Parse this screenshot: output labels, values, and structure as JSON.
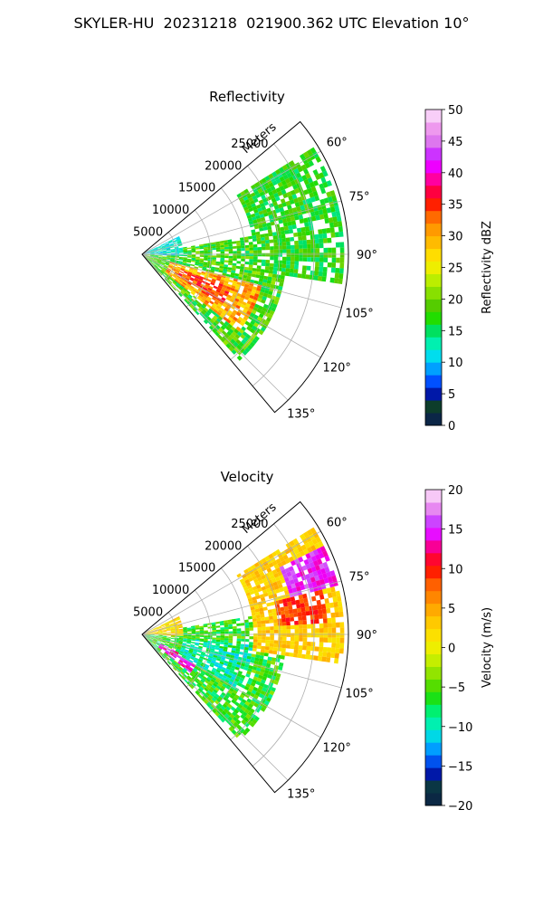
{
  "suptitle": "SKYLER-HU  20231218  021900.362 UTC Elevation 10°",
  "chart_data": [
    {
      "type": "ppi-sector",
      "title": "Reflectivity",
      "range_label": "Meters",
      "range_ticks": [
        5000,
        10000,
        15000,
        20000,
        25000
      ],
      "range_tick_labels": [
        "5000",
        "10000",
        "15000",
        "20000",
        "25000"
      ],
      "r_max": 30000,
      "azimuth_range": [
        50,
        140
      ],
      "azimuth_ticks": [
        60,
        75,
        90,
        105,
        120,
        135
      ],
      "azimuth_tick_labels": [
        "60°",
        "75°",
        "90°",
        "105°",
        "120°",
        "135°"
      ],
      "colorbar": {
        "label": "Reflectivity dBZ",
        "min": 0,
        "max": 50,
        "ticks": [
          0,
          5,
          10,
          15,
          20,
          25,
          30,
          35,
          40,
          45,
          50
        ],
        "tick_labels": [
          "0",
          "5",
          "10",
          "15",
          "20",
          "25",
          "30",
          "35",
          "40",
          "45",
          "50"
        ],
        "colors": [
          [
            0,
            "#0a1a55"
          ],
          [
            3,
            "#0d3d2b"
          ],
          [
            5,
            "#0018a8"
          ],
          [
            7,
            "#0050ff"
          ],
          [
            9,
            "#00a0ff"
          ],
          [
            11,
            "#00ddee"
          ],
          [
            13,
            "#00f0b0"
          ],
          [
            15,
            "#00e060"
          ],
          [
            17,
            "#22dd00"
          ],
          [
            19,
            "#55cc00"
          ],
          [
            21,
            "#88e000"
          ],
          [
            23,
            "#bbee00"
          ],
          [
            25,
            "#eeee00"
          ],
          [
            27,
            "#ffdd00"
          ],
          [
            29,
            "#ffbb00"
          ],
          [
            31,
            "#ff9a00"
          ],
          [
            33,
            "#ff6a00"
          ],
          [
            35,
            "#ff2000"
          ],
          [
            37,
            "#ff0040"
          ],
          [
            39,
            "#ff00a0"
          ],
          [
            41,
            "#ee00ff"
          ],
          [
            43,
            "#cc33ff"
          ],
          [
            45,
            "#dd77ee"
          ],
          [
            47,
            "#ee99ee"
          ],
          [
            50,
            "#fde8fd"
          ]
        ]
      },
      "echo_regions": [
        {
          "az": [
            80,
            138
          ],
          "r": [
            0,
            21000
          ],
          "value": 18,
          "spread": 4
        },
        {
          "az": [
            105,
            128
          ],
          "r": [
            4000,
            18000
          ],
          "value": 30,
          "spread": 4
        },
        {
          "az": [
            110,
            122
          ],
          "r": [
            6000,
            14000
          ],
          "value": 34,
          "spread": 3
        },
        {
          "az": [
            58,
            98
          ],
          "r": [
            16000,
            29500
          ],
          "value": 17,
          "spread": 3
        },
        {
          "az": [
            64,
            92
          ],
          "r": [
            0,
            6000
          ],
          "value": 12,
          "spread": 3
        }
      ]
    },
    {
      "type": "ppi-sector",
      "title": "Velocity",
      "range_label": "Meters",
      "range_ticks": [
        5000,
        10000,
        15000,
        20000,
        25000
      ],
      "range_tick_labels": [
        "5000",
        "10000",
        "15000",
        "20000",
        "25000"
      ],
      "r_max": 30000,
      "azimuth_range": [
        50,
        140
      ],
      "azimuth_ticks": [
        60,
        75,
        90,
        105,
        120,
        135
      ],
      "azimuth_tick_labels": [
        "60°",
        "75°",
        "90°",
        "105°",
        "120°",
        "135°"
      ],
      "colorbar": {
        "label": "Velocity (m/s)",
        "min": -20,
        "max": 20,
        "ticks": [
          -20,
          -15,
          -10,
          -5,
          0,
          5,
          10,
          15,
          20
        ],
        "tick_labels": [
          "−20",
          "−15",
          "−10",
          "−5",
          "0",
          "5",
          "10",
          "15",
          "20"
        ],
        "colors": [
          [
            -20,
            "#0a1a55"
          ],
          [
            -18,
            "#0d3d2b"
          ],
          [
            -16,
            "#0018a8"
          ],
          [
            -14,
            "#0060ff"
          ],
          [
            -12,
            "#00c8ff"
          ],
          [
            -10,
            "#00f0c0"
          ],
          [
            -8,
            "#00f070"
          ],
          [
            -6,
            "#22dd00"
          ],
          [
            -4,
            "#77dd00"
          ],
          [
            -2,
            "#bbee00"
          ],
          [
            0,
            "#eeee00"
          ],
          [
            2,
            "#ffdd00"
          ],
          [
            4,
            "#ffbb00"
          ],
          [
            6,
            "#ff9000"
          ],
          [
            8,
            "#ff6000"
          ],
          [
            10,
            "#ff1000"
          ],
          [
            12,
            "#ff0050"
          ],
          [
            14,
            "#ee00ff"
          ],
          [
            16,
            "#cc44ff"
          ],
          [
            18,
            "#ee99ee"
          ],
          [
            20,
            "#fde8fd"
          ]
        ]
      },
      "echo_regions": [
        {
          "az": [
            80,
            138
          ],
          "r": [
            0,
            21000
          ],
          "value": -6,
          "spread": 3
        },
        {
          "az": [
            116,
            128
          ],
          "r": [
            3000,
            9000
          ],
          "value": 14,
          "spread": 2
        },
        {
          "az": [
            95,
            120
          ],
          "r": [
            6000,
            16000
          ],
          "value": -9,
          "spread": 3
        },
        {
          "az": [
            58,
            98
          ],
          "r": [
            16000,
            29500
          ],
          "value": 3,
          "spread": 2
        },
        {
          "az": [
            64,
            76
          ],
          "r": [
            22000,
            29500
          ],
          "value": 15,
          "spread": 2
        },
        {
          "az": [
            76,
            86
          ],
          "r": [
            20000,
            27000
          ],
          "value": 9,
          "spread": 2
        },
        {
          "az": [
            64,
            92
          ],
          "r": [
            0,
            6000
          ],
          "value": 2,
          "spread": 3
        }
      ]
    }
  ]
}
